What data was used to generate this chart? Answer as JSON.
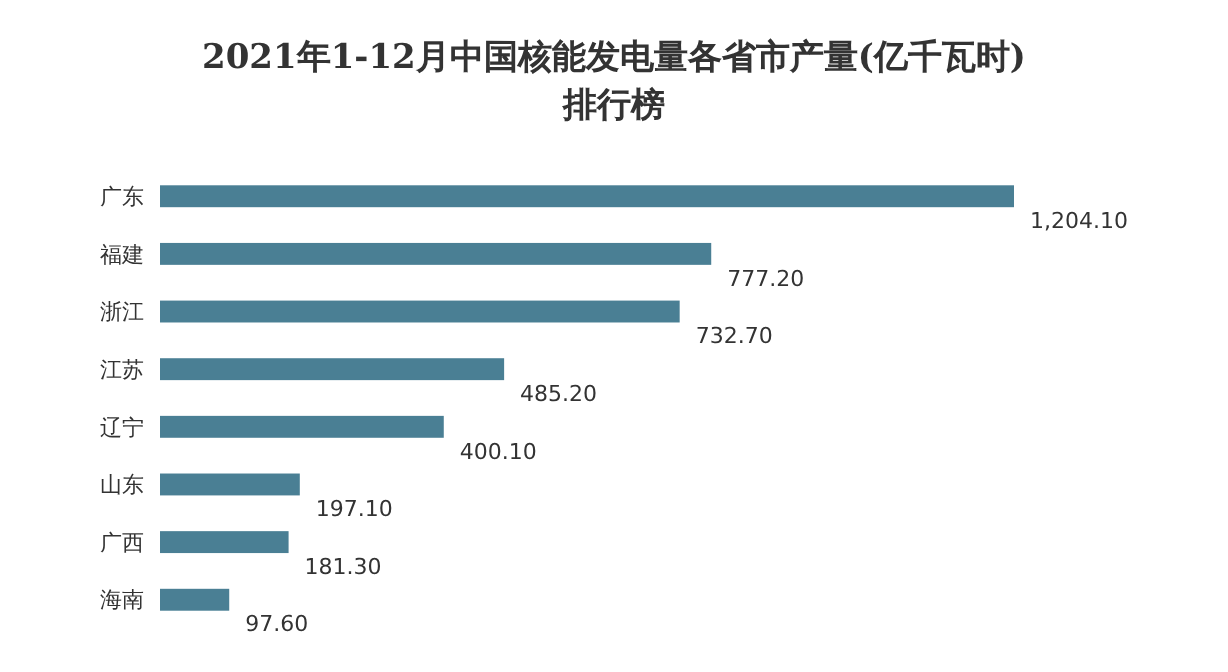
{
  "chart_data": {
    "type": "bar",
    "orientation": "horizontal",
    "title": "2021年1-12月中国核能发电量各省市产量(亿千瓦时)排行榜",
    "categories": [
      "广东",
      "福建",
      "浙江",
      "江苏",
      "辽宁",
      "山东",
      "广西",
      "海南"
    ],
    "values": [
      1204.1,
      777.2,
      732.7,
      485.2,
      400.1,
      197.1,
      181.3,
      97.6
    ],
    "value_labels": [
      "1,204.10",
      "777.20",
      "732.70",
      "485.20",
      "400.10",
      "197.10",
      "181.30",
      "97.60"
    ],
    "color": "#4a7f94"
  }
}
